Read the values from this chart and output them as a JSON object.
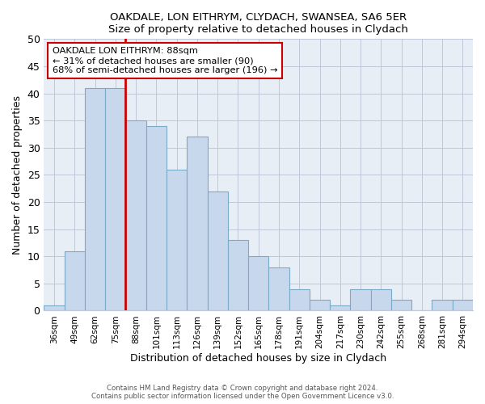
{
  "title1": "OAKDALE, LON EITHRYM, CLYDACH, SWANSEA, SA6 5ER",
  "title2": "Size of property relative to detached houses in Clydach",
  "xlabel": "Distribution of detached houses by size in Clydach",
  "ylabel": "Number of detached properties",
  "categories": [
    "36sqm",
    "49sqm",
    "62sqm",
    "75sqm",
    "88sqm",
    "101sqm",
    "113sqm",
    "126sqm",
    "139sqm",
    "152sqm",
    "165sqm",
    "178sqm",
    "191sqm",
    "204sqm",
    "217sqm",
    "230sqm",
    "242sqm",
    "255sqm",
    "268sqm",
    "281sqm",
    "294sqm"
  ],
  "values": [
    1,
    11,
    41,
    41,
    35,
    34,
    26,
    32,
    22,
    13,
    10,
    8,
    4,
    2,
    1,
    4,
    4,
    2,
    0,
    2,
    2
  ],
  "bar_color": "#c8d8ec",
  "bar_edge_color": "#7aaac8",
  "highlight_index": 4,
  "highlight_edge_color": "#cc0000",
  "ylim": [
    0,
    50
  ],
  "yticks": [
    0,
    5,
    10,
    15,
    20,
    25,
    30,
    35,
    40,
    45,
    50
  ],
  "annotation_title": "OAKDALE LON EITHRYM: 88sqm",
  "annotation_line1": "← 31% of detached houses are smaller (90)",
  "annotation_line2": "68% of semi-detached houses are larger (196) →",
  "annotation_box_color": "#ffffff",
  "annotation_box_edge": "#cc0000",
  "footer1": "Contains HM Land Registry data © Crown copyright and database right 2024.",
  "footer2": "Contains public sector information licensed under the Open Government Licence v3.0."
}
